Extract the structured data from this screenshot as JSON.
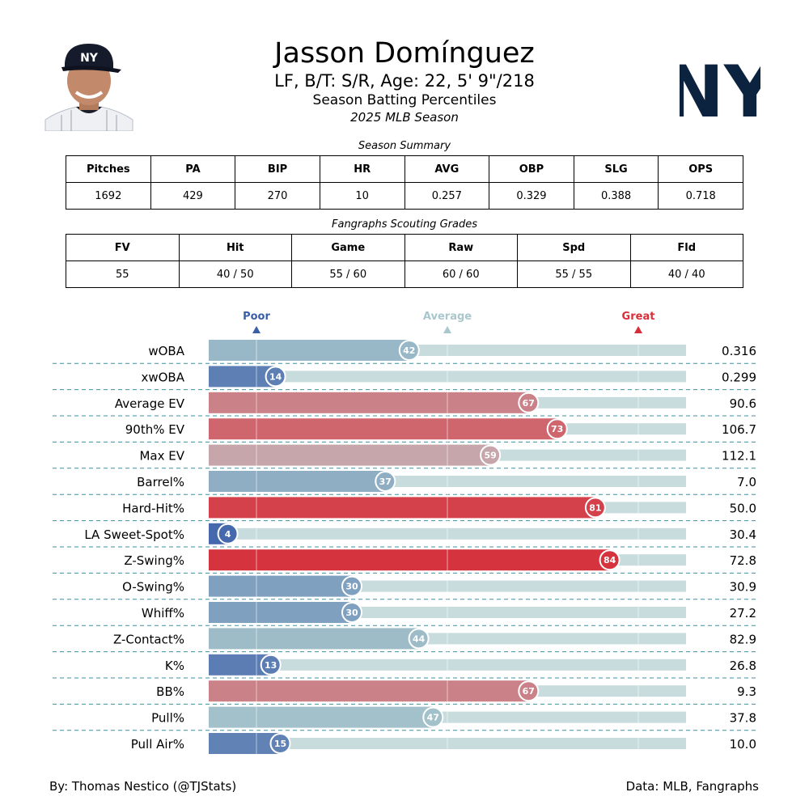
{
  "header": {
    "name": "Jasson Domínguez",
    "info": "LF, B/T: S/R, Age: 22, 5' 9\"/218",
    "subtitle": "Season Batting Percentiles",
    "season": "2025 MLB Season",
    "team_logo_text": "NY"
  },
  "summary": {
    "caption": "Season Summary",
    "headers": [
      "Pitches",
      "PA",
      "BIP",
      "HR",
      "AVG",
      "OBP",
      "SLG",
      "OPS"
    ],
    "values": [
      "1692",
      "429",
      "270",
      "10",
      "0.257",
      "0.329",
      "0.388",
      "0.718"
    ]
  },
  "scouting": {
    "caption": "Fangraphs Scouting Grades",
    "headers": [
      "FV",
      "Hit",
      "Game",
      "Raw",
      "Spd",
      "Fld"
    ],
    "values": [
      "55",
      "40 / 50",
      "55 / 60",
      "60 / 60",
      "55 / 55",
      "40 / 40"
    ]
  },
  "scale": {
    "poor": "Poor",
    "average": "Average",
    "great": "Great",
    "poor_color": "#3a5ea8",
    "average_color": "#a9c7cc",
    "great_color": "#d62f3a"
  },
  "chart_data": {
    "type": "bar",
    "orientation": "horizontal",
    "xlim": [
      0,
      100
    ],
    "categories": [
      "wOBA",
      "xwOBA",
      "Average EV",
      "90th% EV",
      "Max EV",
      "Barrel%",
      "Hard-Hit%",
      "LA Sweet-Spot%",
      "Z-Swing%",
      "O-Swing%",
      "Whiff%",
      "Z-Contact%",
      "K%",
      "BB%",
      "Pull%",
      "Pull Air%"
    ],
    "percentiles": [
      42,
      14,
      67,
      73,
      59,
      37,
      81,
      4,
      84,
      30,
      30,
      44,
      13,
      67,
      47,
      15
    ],
    "stat_values": [
      "0.316",
      "0.299",
      "90.6",
      "106.7",
      "112.1",
      "7.0",
      "50.0",
      "30.4",
      "72.8",
      "30.9",
      "27.2",
      "82.9",
      "26.8",
      "9.3",
      "37.8",
      "10.0"
    ],
    "reference_lines": [
      10,
      50,
      90
    ]
  },
  "footer": {
    "credit": "By: Thomas Nestico (@TJStats)",
    "source": "Data: MLB, Fangraphs"
  }
}
